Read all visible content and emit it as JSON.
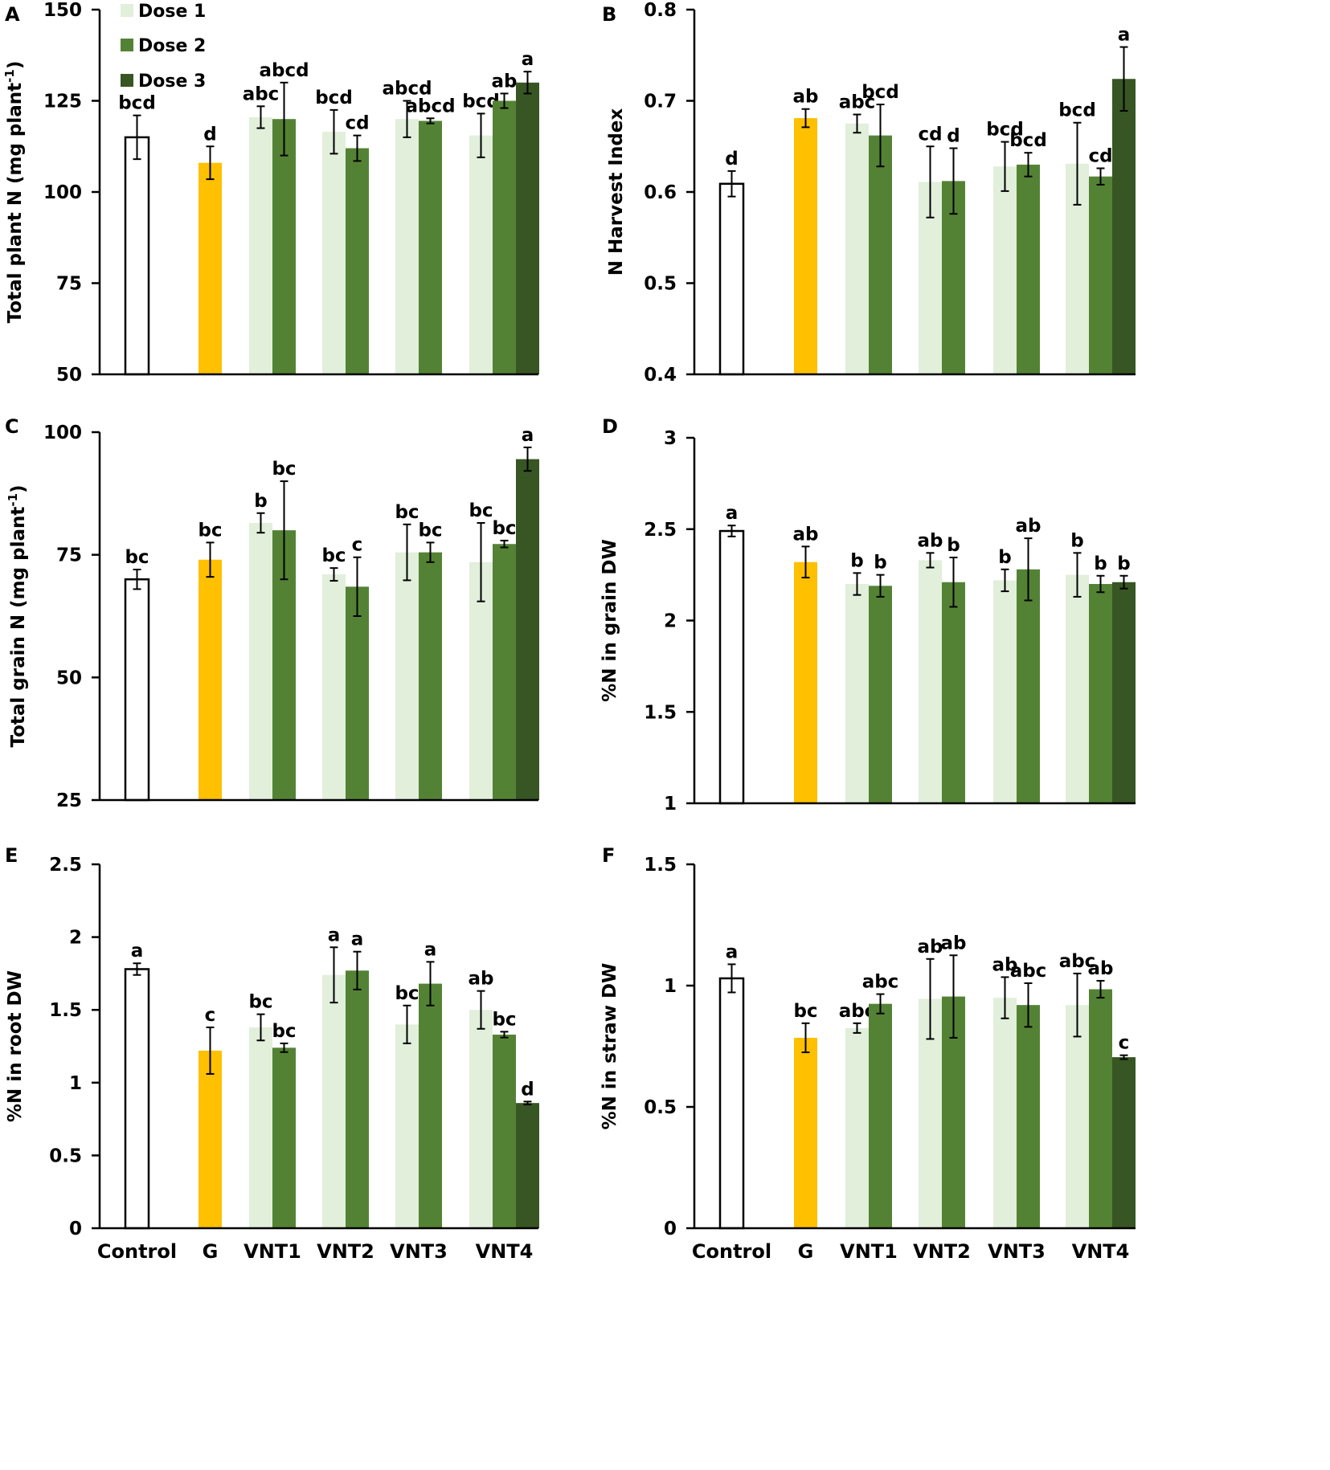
{
  "legend": {
    "entries": [
      {
        "name": "Dose 1",
        "color": "#e1efdb"
      },
      {
        "name": "Dose 2",
        "color": "#548235"
      },
      {
        "name": "Dose 3",
        "color": "#375623"
      }
    ]
  },
  "colors": {
    "control_fill": "#ffffff",
    "g": "#ffc000",
    "dose1": "#e1efdb",
    "dose2": "#548235",
    "dose3": "#375623"
  },
  "categories": [
    "Control",
    "G",
    "VNT1",
    "VNT2",
    "VNT3",
    "VNT4"
  ],
  "chart_data": [
    {
      "panel": "A",
      "type": "bar",
      "ylabel": "Total plant N (mg plant",
      "ylabel_sup": "-1",
      "ylabel_tail": ")",
      "ylim": [
        50,
        150
      ],
      "yticks": [
        "50",
        "75",
        "100",
        "125",
        "150"
      ],
      "show_xlabels": false,
      "bars": [
        {
          "category": "Control",
          "series": "control",
          "value": 115,
          "err": 6,
          "label": "bcd"
        },
        {
          "category": "G",
          "series": "g",
          "value": 108,
          "err": 4.5,
          "label": "d"
        },
        {
          "category": "VNT1",
          "series": "dose1",
          "value": 120.5,
          "err": 3,
          "label": "abc"
        },
        {
          "category": "VNT1",
          "series": "dose2",
          "value": 120,
          "err": 10,
          "label": "abcd"
        },
        {
          "category": "VNT2",
          "series": "dose1",
          "value": 116.5,
          "err": 6,
          "label": "bcd"
        },
        {
          "category": "VNT2",
          "series": "dose2",
          "value": 112,
          "err": 3.5,
          "label": "cd"
        },
        {
          "category": "VNT3",
          "series": "dose1",
          "value": 120,
          "err": 5,
          "label": "abcd"
        },
        {
          "category": "VNT3",
          "series": "dose2",
          "value": 119.5,
          "err": 0.7,
          "label": "abcd"
        },
        {
          "category": "VNT4",
          "series": "dose1",
          "value": 115.5,
          "err": 6,
          "label": "bcd"
        },
        {
          "category": "VNT4",
          "series": "dose2",
          "value": 125,
          "err": 2,
          "label": "ab"
        },
        {
          "category": "VNT4",
          "series": "dose3",
          "value": 130,
          "err": 3,
          "label": "a"
        }
      ]
    },
    {
      "panel": "B",
      "type": "bar",
      "ylabel": "N Harvest Index",
      "ylabel_sup": "",
      "ylabel_tail": "",
      "ylim": [
        0.4,
        0.8
      ],
      "yticks": [
        "0.4",
        "0.5",
        "0.6",
        "0.7",
        "0.8"
      ],
      "show_xlabels": false,
      "bars": [
        {
          "category": "Control",
          "series": "control",
          "value": 0.609,
          "err": 0.014,
          "label": "d"
        },
        {
          "category": "G",
          "series": "g",
          "value": 0.681,
          "err": 0.01,
          "label": "ab"
        },
        {
          "category": "VNT1",
          "series": "dose1",
          "value": 0.675,
          "err": 0.01,
          "label": "abc"
        },
        {
          "category": "VNT1",
          "series": "dose2",
          "value": 0.662,
          "err": 0.034,
          "label": "bcd"
        },
        {
          "category": "VNT2",
          "series": "dose1",
          "value": 0.611,
          "err": 0.039,
          "label": "cd"
        },
        {
          "category": "VNT2",
          "series": "dose2",
          "value": 0.612,
          "err": 0.036,
          "label": "d"
        },
        {
          "category": "VNT3",
          "series": "dose1",
          "value": 0.628,
          "err": 0.027,
          "label": "bcd"
        },
        {
          "category": "VNT3",
          "series": "dose2",
          "value": 0.63,
          "err": 0.013,
          "label": "bcd"
        },
        {
          "category": "VNT4",
          "series": "dose1",
          "value": 0.631,
          "err": 0.045,
          "label": "bcd"
        },
        {
          "category": "VNT4",
          "series": "dose2",
          "value": 0.617,
          "err": 0.009,
          "label": "cd"
        },
        {
          "category": "VNT4",
          "series": "dose3",
          "value": 0.724,
          "err": 0.035,
          "label": "a"
        }
      ]
    },
    {
      "panel": "C",
      "type": "bar",
      "ylabel": "Total grain N (mg plant",
      "ylabel_sup": "-1",
      "ylabel_tail": ")",
      "ylim": [
        25,
        100
      ],
      "yticks": [
        "25",
        "50",
        "75",
        "100"
      ],
      "show_xlabels": false,
      "bars": [
        {
          "category": "Control",
          "series": "control",
          "value": 70,
          "err": 2,
          "label": "bc"
        },
        {
          "category": "G",
          "series": "g",
          "value": 74,
          "err": 3.5,
          "label": "bc"
        },
        {
          "category": "VNT1",
          "series": "dose1",
          "value": 81.5,
          "err": 2,
          "label": "b"
        },
        {
          "category": "VNT1",
          "series": "dose2",
          "value": 80,
          "err": 10,
          "label": "bc"
        },
        {
          "category": "VNT2",
          "series": "dose1",
          "value": 71,
          "err": 1.3,
          "label": "bc"
        },
        {
          "category": "VNT2",
          "series": "dose2",
          "value": 68.5,
          "err": 6,
          "label": "c"
        },
        {
          "category": "VNT3",
          "series": "dose1",
          "value": 75.5,
          "err": 5.7,
          "label": "bc"
        },
        {
          "category": "VNT3",
          "series": "dose2",
          "value": 75.5,
          "err": 2,
          "label": "bc"
        },
        {
          "category": "VNT4",
          "series": "dose1",
          "value": 73.5,
          "err": 8,
          "label": "bc"
        },
        {
          "category": "VNT4",
          "series": "dose2",
          "value": 77.2,
          "err": 0.7,
          "label": "bc"
        },
        {
          "category": "VNT4",
          "series": "dose3",
          "value": 94.5,
          "err": 2.4,
          "label": "a"
        }
      ]
    },
    {
      "panel": "D",
      "type": "bar",
      "ylabel": "%N in grain DW",
      "ylabel_sup": "",
      "ylabel_tail": "",
      "ylim": [
        1,
        3
      ],
      "yticks": [
        "1",
        "1.5",
        "2",
        "2.5",
        "3"
      ],
      "show_xlabels": false,
      "bars": [
        {
          "category": "Control",
          "series": "control",
          "value": 2.49,
          "err": 0.03,
          "label": "a"
        },
        {
          "category": "G",
          "series": "g",
          "value": 2.32,
          "err": 0.085,
          "label": "ab"
        },
        {
          "category": "VNT1",
          "series": "dose1",
          "value": 2.2,
          "err": 0.06,
          "label": "b"
        },
        {
          "category": "VNT1",
          "series": "dose2",
          "value": 2.19,
          "err": 0.06,
          "label": "b"
        },
        {
          "category": "VNT2",
          "series": "dose1",
          "value": 2.33,
          "err": 0.04,
          "label": "ab"
        },
        {
          "category": "VNT2",
          "series": "dose2",
          "value": 2.21,
          "err": 0.135,
          "label": "b"
        },
        {
          "category": "VNT3",
          "series": "dose1",
          "value": 2.22,
          "err": 0.06,
          "label": "b"
        },
        {
          "category": "VNT3",
          "series": "dose2",
          "value": 2.28,
          "err": 0.17,
          "label": "ab"
        },
        {
          "category": "VNT4",
          "series": "dose1",
          "value": 2.25,
          "err": 0.12,
          "label": "b"
        },
        {
          "category": "VNT4",
          "series": "dose2",
          "value": 2.2,
          "err": 0.045,
          "label": "b"
        },
        {
          "category": "VNT4",
          "series": "dose3",
          "value": 2.21,
          "err": 0.035,
          "label": "b"
        }
      ]
    },
    {
      "panel": "E",
      "type": "bar",
      "ylabel": "%N in root DW",
      "ylabel_sup": "",
      "ylabel_tail": "",
      "ylim": [
        0,
        2.5
      ],
      "yticks": [
        "0",
        "0.5",
        "1",
        "1.5",
        "2",
        "2.5"
      ],
      "show_xlabels": true,
      "bars": [
        {
          "category": "Control",
          "series": "control",
          "value": 1.78,
          "err": 0.04,
          "label": "a"
        },
        {
          "category": "G",
          "series": "g",
          "value": 1.22,
          "err": 0.16,
          "label": "c"
        },
        {
          "category": "VNT1",
          "series": "dose1",
          "value": 1.38,
          "err": 0.09,
          "label": "bc"
        },
        {
          "category": "VNT1",
          "series": "dose2",
          "value": 1.24,
          "err": 0.03,
          "label": "bc"
        },
        {
          "category": "VNT2",
          "series": "dose1",
          "value": 1.74,
          "err": 0.19,
          "label": "a"
        },
        {
          "category": "VNT2",
          "series": "dose2",
          "value": 1.77,
          "err": 0.13,
          "label": "a"
        },
        {
          "category": "VNT3",
          "series": "dose1",
          "value": 1.4,
          "err": 0.13,
          "label": "bc"
        },
        {
          "category": "VNT3",
          "series": "dose2",
          "value": 1.68,
          "err": 0.15,
          "label": "a"
        },
        {
          "category": "VNT4",
          "series": "dose1",
          "value": 1.5,
          "err": 0.13,
          "label": "ab"
        },
        {
          "category": "VNT4",
          "series": "dose2",
          "value": 1.33,
          "err": 0.02,
          "label": "bc"
        },
        {
          "category": "VNT4",
          "series": "dose3",
          "value": 0.86,
          "err": 0.01,
          "label": "d"
        }
      ]
    },
    {
      "panel": "F",
      "type": "bar",
      "ylabel": "%N in straw DW",
      "ylabel_sup": "",
      "ylabel_tail": "",
      "ylim": [
        0,
        1.5
      ],
      "yticks": [
        "0",
        "0.5",
        "1",
        "1.5"
      ],
      "show_xlabels": true,
      "bars": [
        {
          "category": "Control",
          "series": "control",
          "value": 1.03,
          "err": 0.058,
          "label": "a"
        },
        {
          "category": "G",
          "series": "g",
          "value": 0.785,
          "err": 0.06,
          "label": "bc"
        },
        {
          "category": "VNT1",
          "series": "dose1",
          "value": 0.825,
          "err": 0.02,
          "label": "abc"
        },
        {
          "category": "VNT1",
          "series": "dose2",
          "value": 0.925,
          "err": 0.04,
          "label": "abc"
        },
        {
          "category": "VNT2",
          "series": "dose1",
          "value": 0.945,
          "err": 0.165,
          "label": "ab"
        },
        {
          "category": "VNT2",
          "series": "dose2",
          "value": 0.955,
          "err": 0.17,
          "label": "ab"
        },
        {
          "category": "VNT3",
          "series": "dose1",
          "value": 0.95,
          "err": 0.085,
          "label": "ab"
        },
        {
          "category": "VNT3",
          "series": "dose2",
          "value": 0.92,
          "err": 0.09,
          "label": "abc"
        },
        {
          "category": "VNT4",
          "series": "dose1",
          "value": 0.92,
          "err": 0.13,
          "label": "abc"
        },
        {
          "category": "VNT4",
          "series": "dose2",
          "value": 0.985,
          "err": 0.035,
          "label": "ab"
        },
        {
          "category": "VNT4",
          "series": "dose3",
          "value": 0.705,
          "err": 0.008,
          "label": "c"
        }
      ]
    }
  ]
}
